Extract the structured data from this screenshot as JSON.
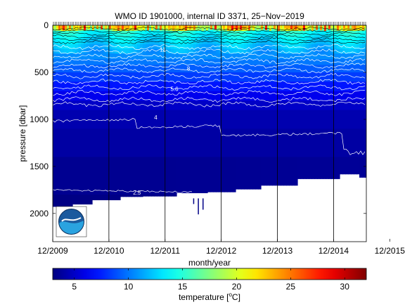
{
  "chart_data": {
    "type": "heatmap",
    "title": "WMO ID 1901000, internal ID 3371, 25−Nov−2019",
    "xlabel": "month/year",
    "ylabel": "pressure [dbar]",
    "x_ticks": [
      "12/2009",
      "12/2010",
      "12/2011",
      "12/2012",
      "12/2013",
      "12/2014",
      "12/2015"
    ],
    "y_ticks": [
      "0",
      "500",
      "1000",
      "1500",
      "2000"
    ],
    "y_tick_values": [
      0,
      500,
      1000,
      1500,
      2000
    ],
    "ylim": [
      2300,
      0
    ],
    "xlim": [
      "12/2009",
      "07/2015"
    ],
    "y_reversed": true,
    "colorbar": {
      "label_main": "temperature [",
      "label_sup": "o",
      "label_end": "C]",
      "ticks": [
        "5",
        "10",
        "15",
        "20",
        "25",
        "30"
      ],
      "tick_values": [
        5,
        10,
        15,
        20,
        25,
        30
      ],
      "range": [
        3,
        32
      ],
      "colormap": "jet"
    },
    "contour_labels": [
      {
        "text": "11",
        "x_month": 23.5,
        "pressure": 280
      },
      {
        "text": "8",
        "x_month": 29,
        "pressure": 480
      },
      {
        "text": "5.6",
        "x_month": 26,
        "pressure": 700
      },
      {
        "text": "4",
        "x_month": 22,
        "pressure": 1000
      },
      {
        "text": "2.5",
        "x_month": 18,
        "pressure": 1800
      }
    ],
    "profile_months": [
      0,
      12,
      24,
      36,
      48,
      60,
      72
    ],
    "grid": false,
    "logo": "NOAA"
  }
}
